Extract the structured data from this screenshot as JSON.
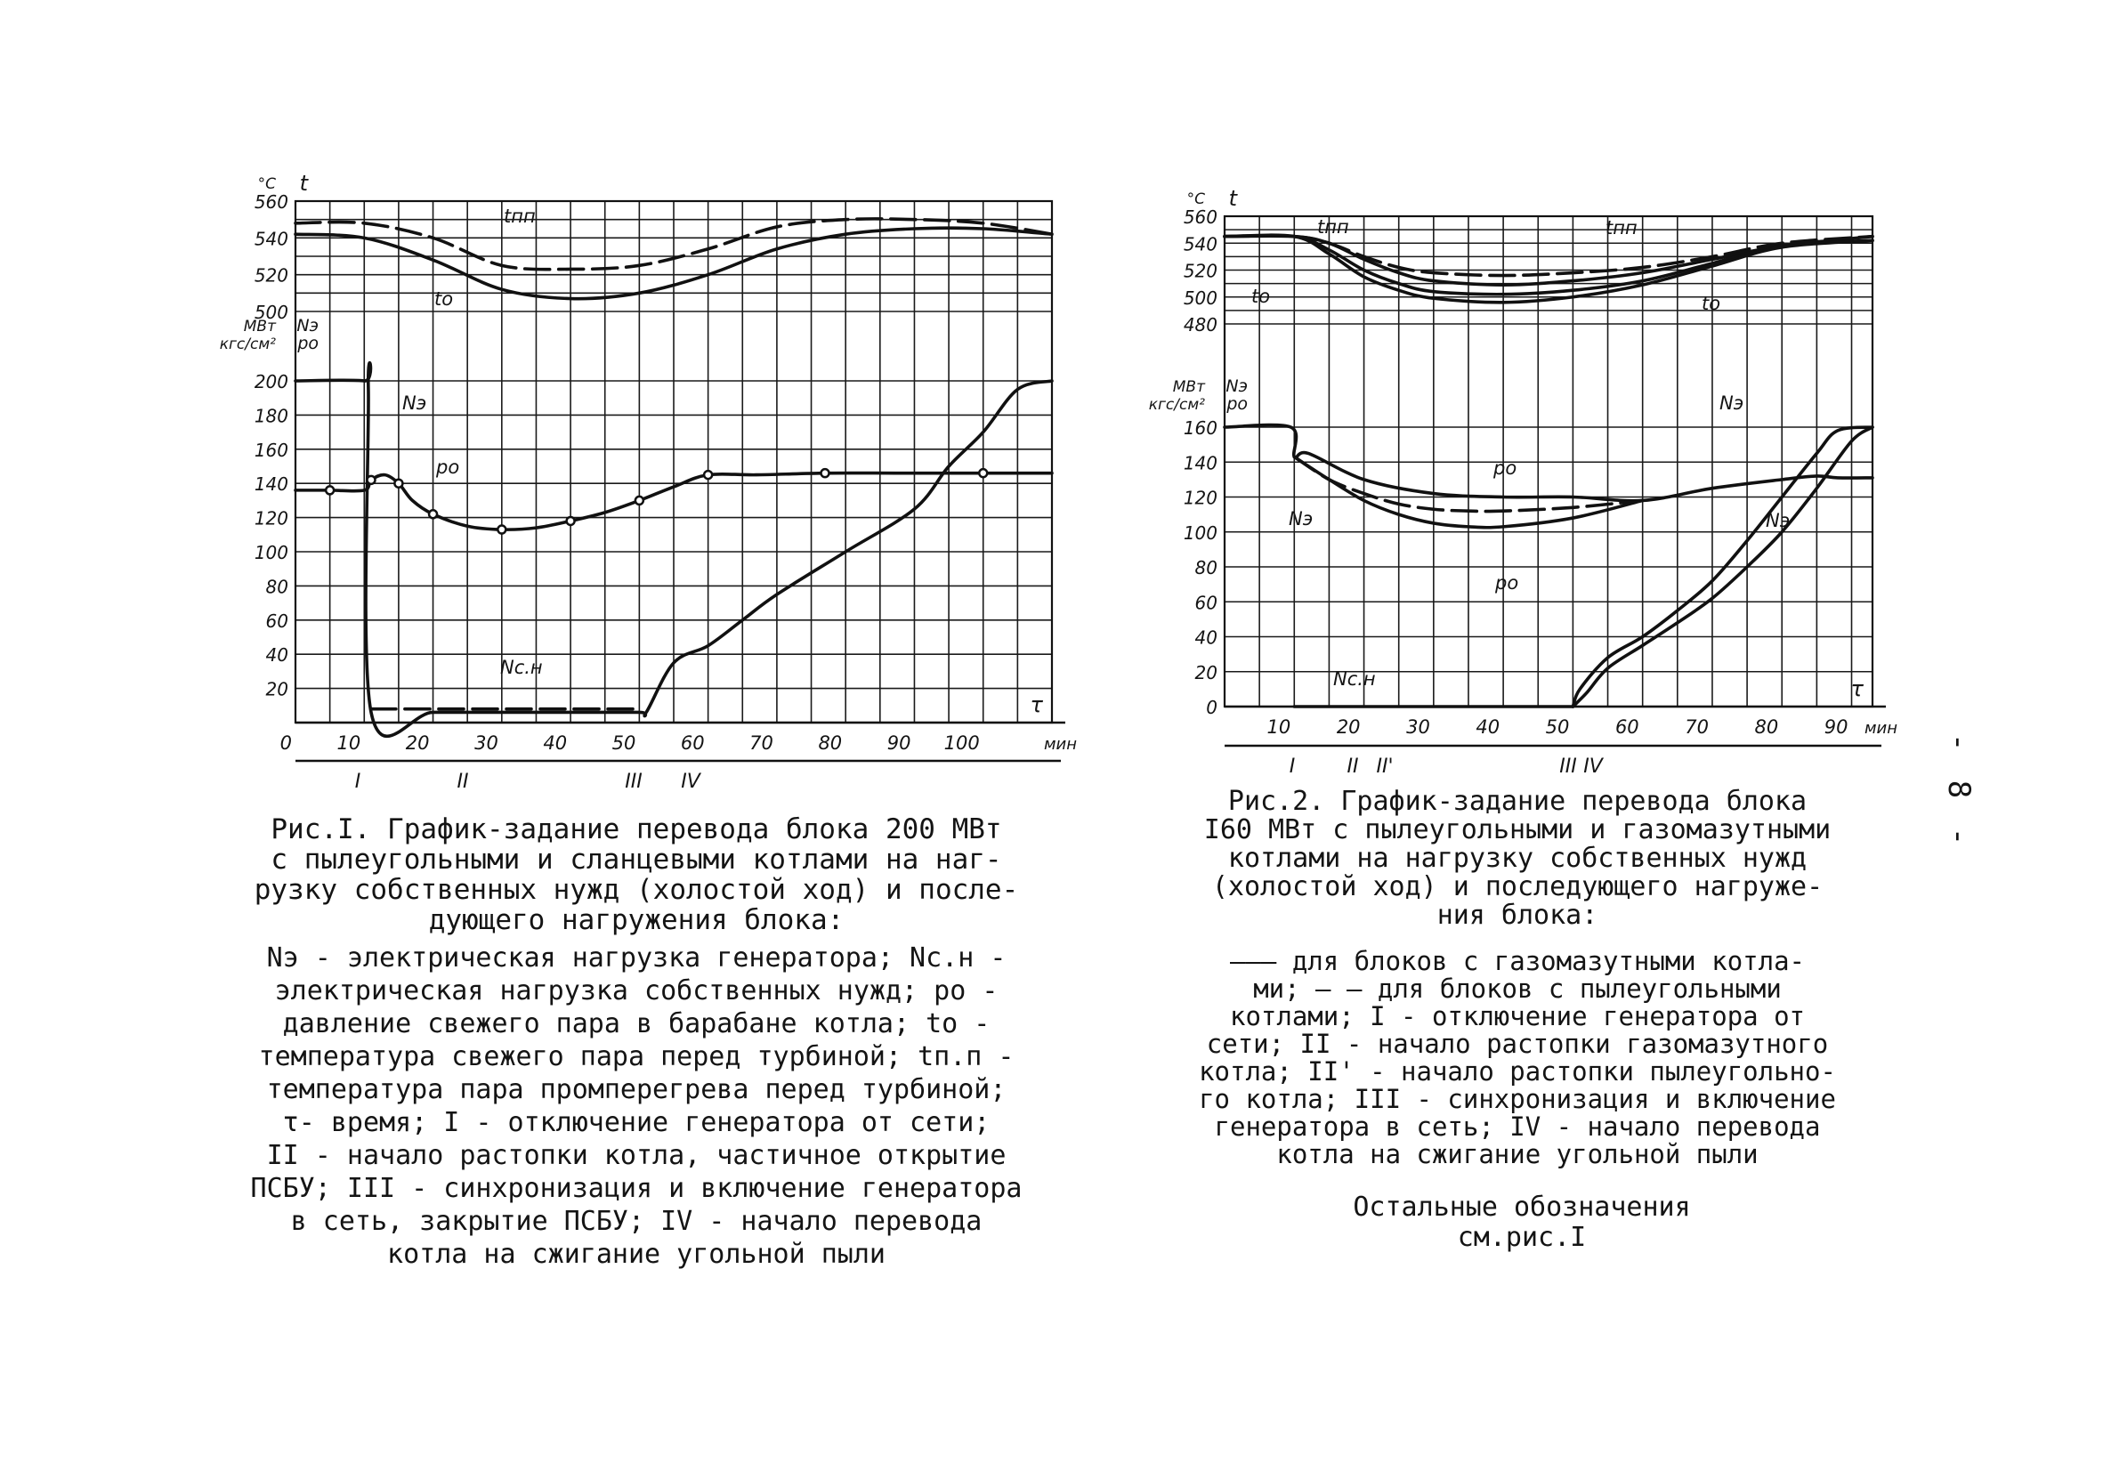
{
  "page_number": "- 8 -",
  "figure1": {
    "caption": "Рис.I. График-задание перевода блока 200 МВт\nс пылеугольными и сланцевыми котлами на наг-\nрузку собственных нужд (холостой ход) и после-\nдующего нагружения блока:",
    "legend": "Nэ - электрическая нагрузка генератора; Nс.н -\nэлектрическая нагрузка собственных нужд; pо -\nдавление свежего пара в барабане котла; tо -\nтемпература свежего пара перед турбиной; tп.п -\nтемпература пара промперегрева перед турбиной;\nτ- время; I - отключение генератора от сети;\nII - начало растопки котла, частичное открытие\nПСБУ; III - синхронизация и включение генератора\nв сеть, закрытие ПСБУ; IV - начало перевода\nкотла на сжигание угольной пыли",
    "chart_data": {
      "type": "line",
      "xlabel": "τ",
      "xunit": "мин",
      "xlim": [
        0,
        110
      ],
      "x_ticks": [
        "0",
        "10",
        "20",
        "30",
        "40",
        "50",
        "60",
        "70",
        "80",
        "90",
        "100"
      ],
      "temp_axis": {
        "unit": "°C",
        "label": "t",
        "ylim": [
          500,
          560
        ],
        "ticks": [
          "500",
          "520",
          "540",
          "560"
        ]
      },
      "load_axis": {
        "units": [
          "МВт",
          "кгс/см²"
        ],
        "labels": [
          "Nэ",
          "pо"
        ],
        "ylim": [
          0,
          200
        ],
        "ticks": [
          "20",
          "40",
          "60",
          "80",
          "100",
          "120",
          "140",
          "160",
          "180",
          "200"
        ]
      },
      "events": [
        "I",
        "II",
        "III",
        "IV"
      ],
      "series": [
        {
          "name": "tпп",
          "axis": "temp",
          "style": "dashed",
          "x": [
            0,
            10,
            20,
            30,
            40,
            50,
            60,
            70,
            80,
            90,
            100,
            110
          ],
          "y": [
            548,
            548,
            540,
            525,
            523,
            525,
            534,
            546,
            550,
            550,
            548,
            542
          ]
        },
        {
          "name": "tо",
          "axis": "temp",
          "style": "solid",
          "x": [
            0,
            10,
            20,
            30,
            40,
            50,
            60,
            70,
            80,
            90,
            100,
            110
          ],
          "y": [
            542,
            540,
            528,
            512,
            507,
            510,
            520,
            534,
            542,
            545,
            545,
            542
          ]
        },
        {
          "name": "Nэ",
          "axis": "load",
          "style": "solid",
          "x": [
            0,
            10,
            10.6,
            11,
            20,
            30,
            40,
            50,
            51,
            55,
            60,
            65,
            70,
            80,
            90,
            95,
            100,
            105,
            110
          ],
          "y": [
            200,
            200,
            195,
            6,
            6,
            6,
            6,
            6,
            6,
            35,
            45,
            60,
            75,
            100,
            125,
            150,
            170,
            195,
            200
          ]
        },
        {
          "name": "pо",
          "axis": "load",
          "style": "solid",
          "markers": true,
          "x": [
            0,
            5,
            10,
            11,
            13,
            15,
            17,
            20,
            25,
            30,
            35,
            40,
            45,
            50,
            55,
            60,
            67,
            77,
            88,
            100,
            110
          ],
          "y": [
            136,
            136,
            136,
            142,
            145,
            140,
            130,
            122,
            115,
            113,
            114,
            118,
            123,
            130,
            138,
            145,
            145,
            146,
            146,
            146,
            146
          ]
        },
        {
          "name": "Nс.н",
          "axis": "load",
          "style": "dashed",
          "x": [
            11,
            20,
            30,
            40,
            50
          ],
          "y": [
            8,
            8,
            8,
            8,
            8
          ]
        }
      ]
    }
  },
  "figure2": {
    "caption": "Рис.2. График-задание перевода блока\nI60 МВт с пылеугольными и газомазутными\nкотлами на нагрузку собственных нужд\n(холостой ход) и последующего нагруже-\nния блока:",
    "legend": "——— для блоков с газомазутными котла-\nми; — — для блоков с пылеугольными\nкотлами; I - отключение генератора от\nсети; II - начало растопки газомазутного\nкотла; II' - начало растопки пылеугольно-\nго котла; III - синхронизация и включение\nгенератора в сеть; IV - начало перевода\nкотла на сжигание угольной пыли",
    "other": "Остальные обозначения\nсм.рис.I",
    "chart_data": {
      "type": "line",
      "xlabel": "τ",
      "xunit": "мин",
      "xlim": [
        0,
        93
      ],
      "x_ticks": [
        "10",
        "20",
        "30",
        "40",
        "50",
        "60",
        "70",
        "80",
        "90"
      ],
      "temp_axis": {
        "unit": "°C",
        "label": "t",
        "ylim": [
          480,
          560
        ],
        "ticks": [
          "480",
          "500",
          "520",
          "540",
          "560"
        ]
      },
      "load_axis": {
        "units": [
          "МВт",
          "кгс/см²"
        ],
        "labels": [
          "Nэ",
          "pо"
        ],
        "ylim": [
          0,
          160
        ],
        "ticks": [
          "0",
          "20",
          "40",
          "60",
          "80",
          "100",
          "120",
          "140",
          "160"
        ]
      },
      "events": [
        "I",
        "II",
        "II'",
        "III",
        "IV"
      ],
      "series": [
        {
          "name": "tпп",
          "axis": "temp",
          "style": "dashed",
          "x": [
            0,
            10,
            15,
            20,
            25,
            30,
            40,
            50,
            60,
            70,
            80,
            93
          ],
          "y": [
            545,
            545,
            540,
            530,
            522,
            518,
            516,
            518,
            522,
            530,
            540,
            545
          ]
        },
        {
          "name": "tпп",
          "axis": "temp",
          "style": "solid",
          "x": [
            0,
            10,
            15,
            20,
            25,
            30,
            40,
            50,
            60,
            70,
            80,
            93
          ],
          "y": [
            545,
            545,
            540,
            528,
            518,
            512,
            509,
            512,
            518,
            528,
            538,
            545
          ]
        },
        {
          "name": "tо",
          "axis": "temp",
          "style": "solid",
          "x": [
            0,
            10,
            15,
            20,
            25,
            30,
            40,
            50,
            60,
            70,
            80,
            93
          ],
          "y": [
            545,
            545,
            535,
            520,
            510,
            504,
            502,
            505,
            512,
            525,
            538,
            542
          ]
        },
        {
          "name": "tо",
          "axis": "temp",
          "style": "solid",
          "x": [
            0,
            10,
            15,
            20,
            25,
            30,
            40,
            50,
            60,
            70,
            80,
            93
          ],
          "y": [
            545,
            545,
            532,
            515,
            505,
            499,
            496,
            500,
            509,
            523,
            537,
            542
          ]
        },
        {
          "name": "Nэ",
          "axis": "load",
          "style": "solid",
          "x": [
            0,
            9.5,
            10,
            12,
            20,
            30,
            40,
            50,
            60,
            70,
            80,
            85,
            88,
            93
          ],
          "y": [
            160,
            160,
            143,
            145,
            130,
            122,
            120,
            120,
            118,
            125,
            130,
            132,
            131,
            131
          ]
        },
        {
          "name": "pо",
          "axis": "load",
          "style": "dashed",
          "x": [
            10,
            15,
            20,
            25,
            30,
            35,
            40,
            50,
            60
          ],
          "y": [
            143,
            130,
            122,
            116,
            113,
            112,
            112,
            114,
            118
          ]
        },
        {
          "name": "pо",
          "axis": "load",
          "style": "solid",
          "x": [
            10,
            15,
            20,
            25,
            30,
            35,
            40,
            50,
            60
          ],
          "y": [
            143,
            130,
            118,
            110,
            105,
            103,
            103,
            108,
            118
          ]
        },
        {
          "name": "Nэ",
          "axis": "load",
          "style": "solid",
          "x": [
            50,
            51,
            55,
            60,
            65,
            70,
            75,
            80,
            85,
            88,
            93
          ],
          "y": [
            0,
            10,
            28,
            40,
            55,
            72,
            95,
            120,
            145,
            158,
            160
          ]
        },
        {
          "name": "Nэ",
          "axis": "load",
          "style": "solid",
          "x": [
            50,
            52,
            55,
            60,
            65,
            70,
            75,
            80,
            85,
            90,
            93
          ],
          "y": [
            0,
            8,
            22,
            35,
            48,
            62,
            80,
            100,
            125,
            152,
            160
          ]
        },
        {
          "name": "Nс.н",
          "axis": "load",
          "style": "solid",
          "x": [
            10,
            20,
            30,
            40,
            50
          ],
          "y": [
            0,
            0,
            0,
            0,
            0
          ]
        }
      ]
    }
  }
}
